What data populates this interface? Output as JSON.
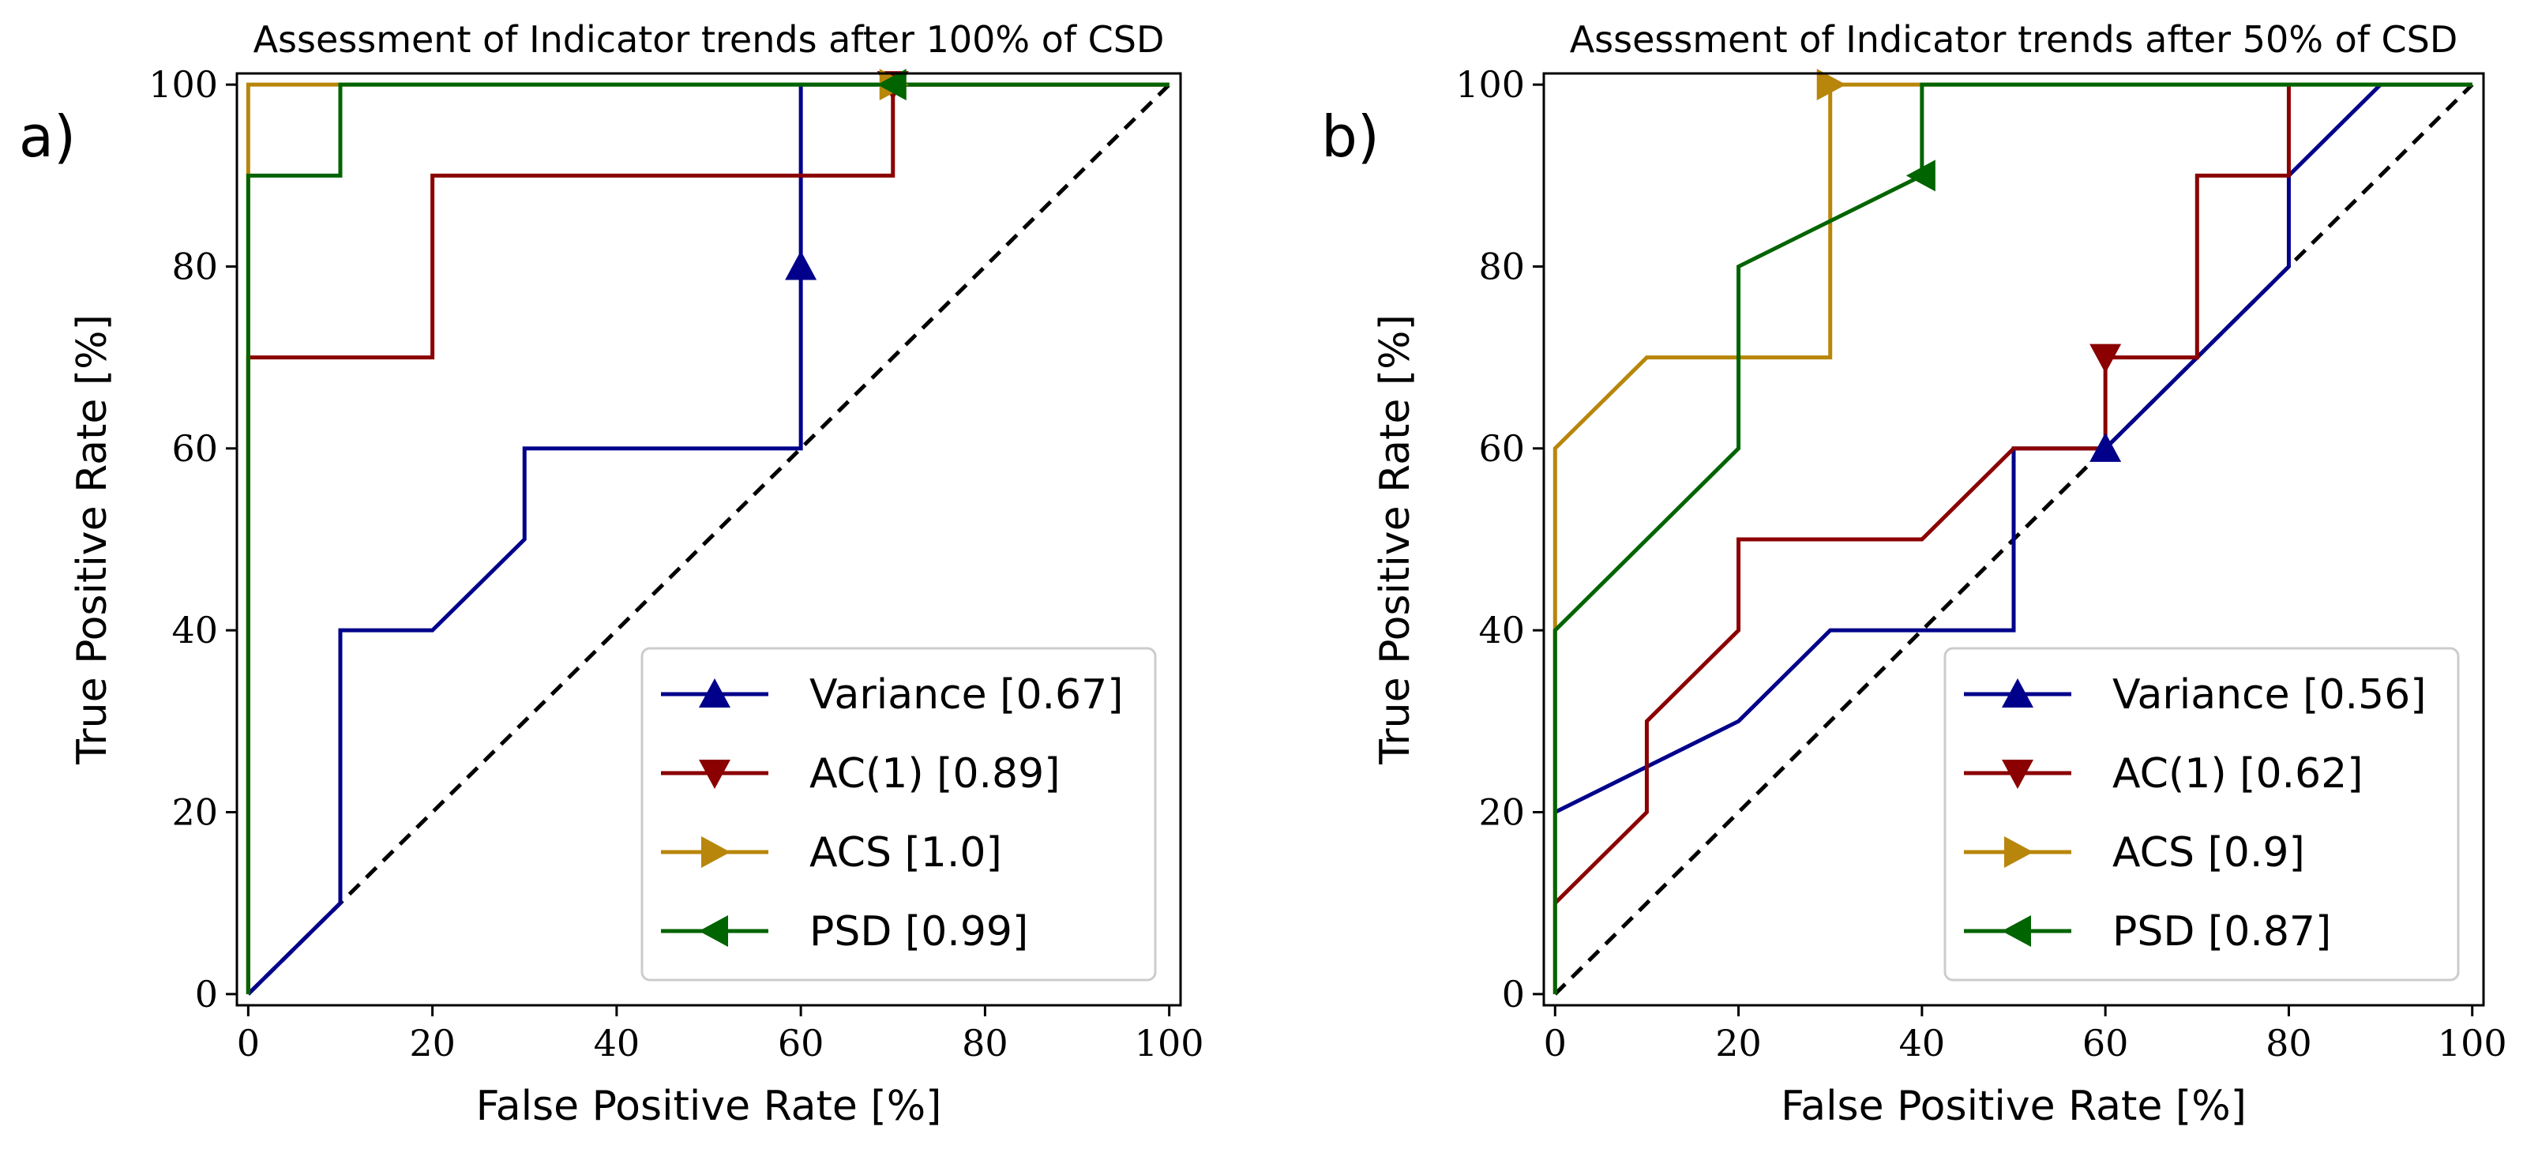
{
  "chart_data": [
    {
      "type": "line",
      "panel_label": "a)",
      "title": "Assessment of Indicator trends after 100% of CSD",
      "xlabel": "False Positive Rate [%]",
      "ylabel": "True Positive Rate [%]",
      "xlim": [
        0,
        100
      ],
      "ylim": [
        0,
        100
      ],
      "xticks": [
        0,
        20,
        40,
        60,
        80,
        100
      ],
      "yticks": [
        0,
        20,
        40,
        60,
        80,
        100
      ],
      "grid": false,
      "legend_position": "lower-right",
      "diagonal": {
        "style": "dashed",
        "color": "#000000",
        "from": [
          0,
          0
        ],
        "to": [
          100,
          100
        ]
      },
      "series": [
        {
          "name": "Variance [0.67]",
          "color": "#00008b",
          "marker": "triangle-up",
          "x": [
            0,
            10,
            10,
            20,
            30,
            30,
            60,
            60,
            60,
            100
          ],
          "y": [
            0,
            10,
            40,
            40,
            50,
            60,
            60,
            80,
            100,
            100
          ],
          "marker_point": [
            60,
            80
          ]
        },
        {
          "name": "AC(1) [0.89]",
          "color": "#8b0000",
          "marker": "triangle-down",
          "x": [
            0,
            0,
            20,
            20,
            70,
            70,
            100
          ],
          "y": [
            0,
            70,
            70,
            90,
            90,
            100,
            100
          ],
          "marker_point": [
            70,
            100
          ]
        },
        {
          "name": "ACS [1.0]",
          "color": "#b8860b",
          "marker": "triangle-right",
          "x": [
            0,
            0,
            100
          ],
          "y": [
            0,
            100,
            100
          ],
          "marker_point": [
            70,
            100
          ]
        },
        {
          "name": "PSD [0.99]",
          "color": "#006400",
          "marker": "triangle-left",
          "x": [
            0,
            0,
            10,
            10,
            100
          ],
          "y": [
            0,
            90,
            90,
            100,
            100
          ],
          "marker_point": [
            70,
            100
          ]
        }
      ]
    },
    {
      "type": "line",
      "panel_label": "b)",
      "title": "Assessment of Indicator trends after 50% of CSD",
      "xlabel": "False Positive Rate [%]",
      "ylabel": "True Positive Rate [%]",
      "xlim": [
        0,
        100
      ],
      "ylim": [
        0,
        100
      ],
      "xticks": [
        0,
        20,
        40,
        60,
        80,
        100
      ],
      "yticks": [
        0,
        20,
        40,
        60,
        80,
        100
      ],
      "grid": false,
      "legend_position": "lower-right",
      "diagonal": {
        "style": "dashed",
        "color": "#000000",
        "from": [
          0,
          0
        ],
        "to": [
          100,
          100
        ]
      },
      "series": [
        {
          "name": "Variance [0.56]",
          "color": "#00008b",
          "marker": "triangle-up",
          "x": [
            0,
            20,
            30,
            40,
            50,
            50,
            60,
            70,
            80,
            80,
            90,
            100
          ],
          "y": [
            20,
            30,
            40,
            40,
            40,
            60,
            60,
            70,
            80,
            90,
            100,
            100
          ],
          "marker_point": [
            60,
            60
          ]
        },
        {
          "name": "AC(1) [0.62]",
          "color": "#8b0000",
          "marker": "triangle-down",
          "x": [
            0,
            10,
            10,
            20,
            20,
            40,
            50,
            60,
            60,
            70,
            70,
            80,
            80
          ],
          "y": [
            10,
            20,
            30,
            40,
            50,
            50,
            60,
            60,
            70,
            70,
            90,
            90,
            100
          ],
          "marker_point": [
            60,
            70
          ]
        },
        {
          "name": "ACS [0.9]",
          "color": "#b8860b",
          "marker": "triangle-right",
          "x": [
            0,
            0,
            10,
            30,
            30,
            100
          ],
          "y": [
            0,
            60,
            70,
            70,
            100,
            100
          ],
          "marker_point": [
            30,
            100
          ]
        },
        {
          "name": "PSD [0.87]",
          "color": "#006400",
          "marker": "triangle-left",
          "x": [
            0,
            0,
            20,
            20,
            40,
            40,
            100
          ],
          "y": [
            0,
            40,
            60,
            80,
            90,
            100,
            100
          ],
          "marker_point": [
            40,
            90
          ]
        }
      ]
    }
  ]
}
